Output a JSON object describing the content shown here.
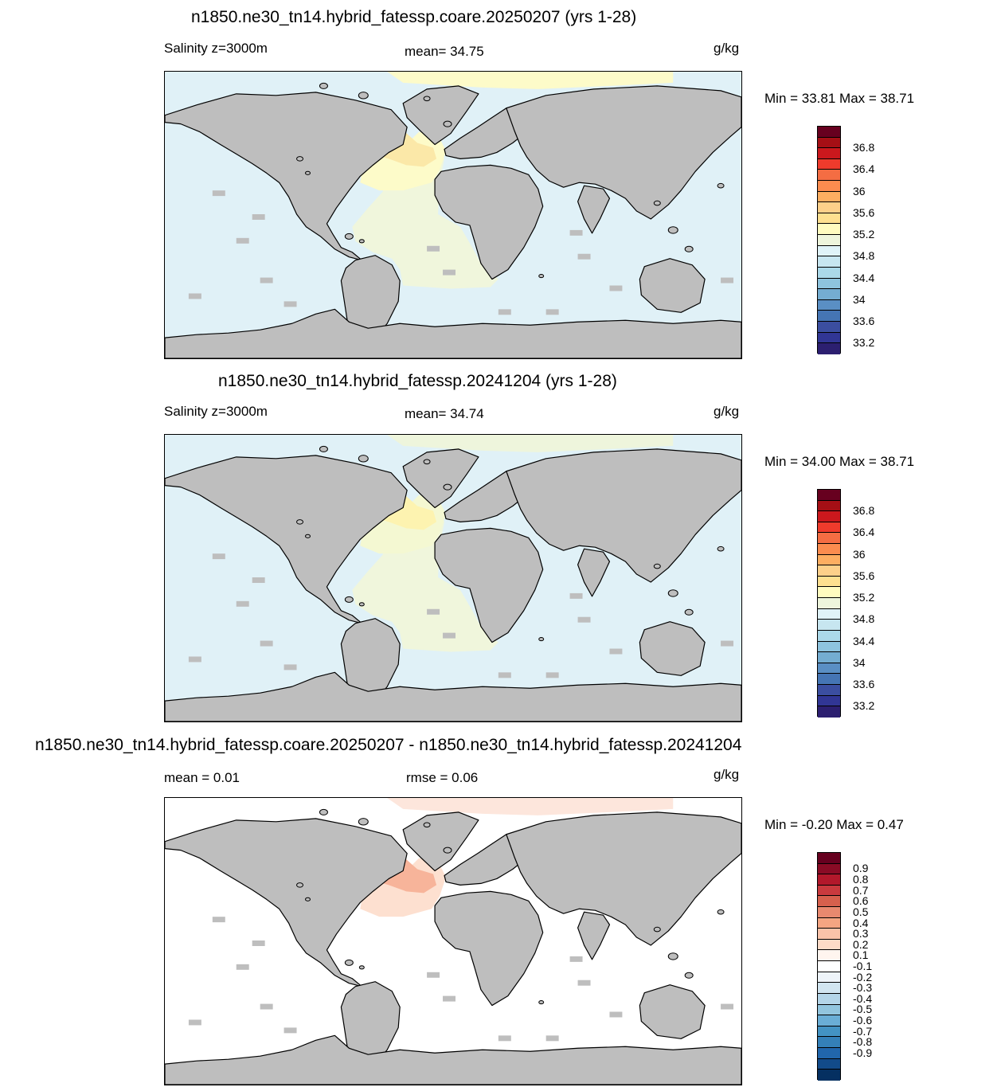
{
  "panels": [
    {
      "title": "n1850.ne30_tn14.hybrid_fatessp.coare.20250207 (yrs 1-28)",
      "left_label": "Salinity z=3000m",
      "center_label": "mean=  34.75",
      "units": "g/kg",
      "minmax": "Min =  33.81 Max =  38.71",
      "ocean_color": "#e0f1f7",
      "atlantic_color": "#f0f6dc",
      "north_atlantic_color": "#fdfbc9",
      "high_color": "#fbe8a8",
      "arctic_color": "#fdfbc9",
      "cbar_colors": [
        "#67001f",
        "#a50f15",
        "#cb181d",
        "#ef3b2c",
        "#f46d43",
        "#fb8c4f",
        "#fdae61",
        "#fdd08a",
        "#fee090",
        "#fffbbf",
        "#eef5dc",
        "#e0f3f8",
        "#c7e6f0",
        "#abd9e9",
        "#8ec4de",
        "#74add1",
        "#5a8fc4",
        "#4575b4",
        "#3b4ea0",
        "#313695",
        "#2c1f70"
      ],
      "cbar_labels": [
        "36.8",
        "36.4",
        "36",
        "35.6",
        "35.2",
        "34.8",
        "34.4",
        "34",
        "33.6",
        "33.2"
      ]
    },
    {
      "title": "n1850.ne30_tn14.hybrid_fatessp.20241204 (yrs 1-28)",
      "left_label": "Salinity z=3000m",
      "center_label": "mean=  34.74",
      "units": "g/kg",
      "minmax": "Min =  34.00 Max =  38.71",
      "ocean_color": "#e0f1f7",
      "atlantic_color": "#f0f6dc",
      "north_atlantic_color": "#f4f8d2",
      "high_color": "#fdf3b0",
      "arctic_color": "#eef5dc",
      "cbar_colors": [
        "#67001f",
        "#a50f15",
        "#cb181d",
        "#ef3b2c",
        "#f46d43",
        "#fb8c4f",
        "#fdae61",
        "#fdd08a",
        "#fee090",
        "#fffbbf",
        "#eef5dc",
        "#e0f3f8",
        "#c7e6f0",
        "#abd9e9",
        "#8ec4de",
        "#74add1",
        "#5a8fc4",
        "#4575b4",
        "#3b4ea0",
        "#313695",
        "#2c1f70"
      ],
      "cbar_labels": [
        "36.8",
        "36.4",
        "36",
        "35.6",
        "35.2",
        "34.8",
        "34.4",
        "34",
        "33.6",
        "33.2"
      ]
    },
    {
      "title": "n1850.ne30_tn14.hybrid_fatessp.coare.20250207 - n1850.ne30_tn14.hybrid_fatessp.20241204",
      "left_label": "mean =   0.01",
      "center_label": "rmse =   0.06",
      "units": "g/kg",
      "minmax": "Min =  -0.20 Max =   0.47",
      "ocean_color": "#ffffff",
      "atlantic_color": "#ffffff",
      "north_atlantic_color": "#fde0d0",
      "high_color": "#f7b49a",
      "arctic_color": "#fde6dc",
      "cbar_colors": [
        "#67001f",
        "#8a0b25",
        "#b2182b",
        "#c93a3e",
        "#d6604d",
        "#e8896f",
        "#f4a582",
        "#fac3a9",
        "#fddbc7",
        "#fff5ef",
        "#ffffff",
        "#eef4f9",
        "#d1e5f0",
        "#b4d5e8",
        "#92c5de",
        "#6aaed6",
        "#4393c3",
        "#3480b8",
        "#2166ac",
        "#124b8a",
        "#053061"
      ],
      "cbar_labels": [
        "0.9",
        "0.8",
        "0.7",
        "0.6",
        "0.5",
        "0.4",
        "0.3",
        "0.2",
        "0.1",
        "-0.1",
        "-0.2",
        "-0.3",
        "-0.4",
        "-0.5",
        "-0.6",
        "-0.7",
        "-0.8",
        "-0.9"
      ]
    }
  ]
}
